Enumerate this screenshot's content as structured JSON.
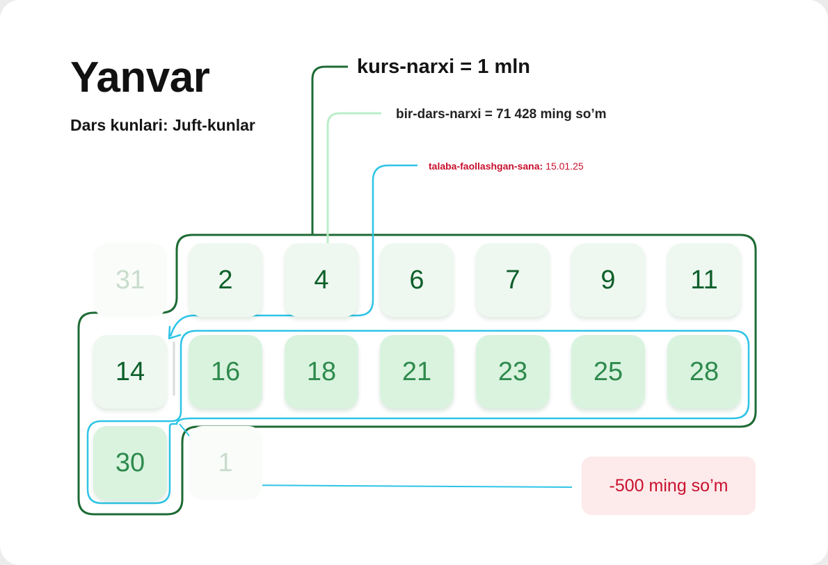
{
  "month": "Yanvar",
  "schedule": "Dars kunlari: Juft-kunlar",
  "course_price": "kurs-narxi = 1 mln",
  "lesson_price": "bir-dars-narxi = 71 428 ming so’m",
  "activation": {
    "label": "talaba-faollashgan-sana:",
    "date": "15.01.25"
  },
  "refund": "-500 ming so’m",
  "days": [
    {
      "day": "31",
      "state": "other-month"
    },
    {
      "day": "2",
      "state": "lesson"
    },
    {
      "day": "4",
      "state": "lesson"
    },
    {
      "day": "6",
      "state": "lesson"
    },
    {
      "day": "7",
      "state": "lesson"
    },
    {
      "day": "9",
      "state": "lesson"
    },
    {
      "day": "11",
      "state": "lesson"
    },
    {
      "day": "14",
      "state": "lesson"
    },
    {
      "day": "16",
      "state": "after-activation"
    },
    {
      "day": "18",
      "state": "after-activation"
    },
    {
      "day": "21",
      "state": "after-activation"
    },
    {
      "day": "23",
      "state": "after-activation"
    },
    {
      "day": "25",
      "state": "after-activation"
    },
    {
      "day": "28",
      "state": "after-activation"
    },
    {
      "day": "30",
      "state": "after-activation"
    },
    {
      "day": "1",
      "state": "other-month"
    }
  ],
  "colors": {
    "course_bracket": "#1d6b34",
    "lesson_connector": "#b9efc9",
    "activation_connector": "#2ec4e6",
    "accent_red": "#c8102e",
    "lesson_cell": "#eef8f0",
    "billed_cell": "#d9f3df"
  }
}
